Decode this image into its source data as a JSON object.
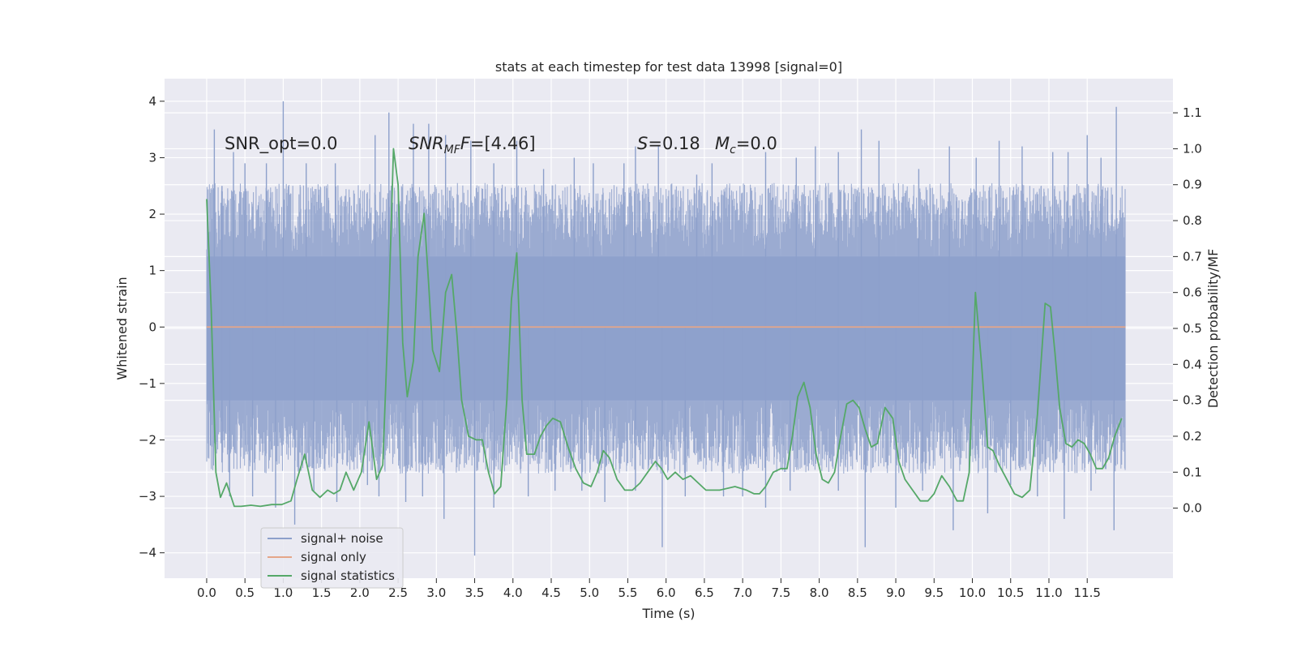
{
  "chart_data": {
    "type": "line",
    "title": "stats at each timestep for test data 13998 [signal=0]",
    "xlabel": "Time (s)",
    "ylabel": "Whitened strain",
    "y2label": "Detection probability/MF",
    "xlim": [
      -0.55,
      12.62
    ],
    "ylim": [
      -4.45,
      4.4
    ],
    "y2lim": [
      -0.195,
      1.195
    ],
    "xticks": [
      0.0,
      0.5,
      1.0,
      1.5,
      2.0,
      2.5,
      3.0,
      3.5,
      4.0,
      4.5,
      5.0,
      5.5,
      6.0,
      6.5,
      7.0,
      7.5,
      8.0,
      8.5,
      9.0,
      9.5,
      10.0,
      10.5,
      11.0,
      11.5
    ],
    "xtick_labels": [
      "0.0",
      "0.5",
      "1.0",
      "1.5",
      "2.0",
      "2.5",
      "3.0",
      "3.5",
      "4.0",
      "4.5",
      "5.0",
      "5.5",
      "6.0",
      "6.5",
      "7.0",
      "7.5",
      "8.0",
      "8.5",
      "9.0",
      "9.5",
      "10.0",
      "10.5",
      "11.0",
      "11.5"
    ],
    "yticks": [
      -4,
      -3,
      -2,
      -1,
      0,
      1,
      2,
      3,
      4
    ],
    "ytick_labels": [
      "−4",
      "−3",
      "−2",
      "−1",
      "0",
      "1",
      "2",
      "3",
      "4"
    ],
    "y2ticks": [
      0.0,
      0.1,
      0.2,
      0.3,
      0.4,
      0.5,
      0.6,
      0.7,
      0.8,
      0.9,
      1.0,
      1.1
    ],
    "y2tick_labels": [
      "0.0",
      "0.1",
      "0.2",
      "0.3",
      "0.4",
      "0.5",
      "0.6",
      "0.7",
      "0.8",
      "0.9",
      "1.0",
      "1.1"
    ],
    "grid": true,
    "legend_position": "lower-left",
    "annotations": {
      "snr_opt": "SNR_opt=0.0",
      "snr_mf_main": "SNR",
      "snr_mf_sub": "MF",
      "snr_mf_rest": "=[4.46]",
      "s_sym": "S",
      "s_val": "=0.18",
      "mc_main": "M",
      "mc_sub": "c",
      "mc_val": "=0.0"
    },
    "series": [
      {
        "name": "signal+ noise",
        "color": "#8da0cb",
        "axis": "left",
        "duration": 12.0,
        "baseline_band": [
          -1.3,
          1.25
        ],
        "spikes": [
          [
            0.1,
            3.5
          ],
          [
            0.2,
            2.5
          ],
          [
            0.35,
            3.1
          ],
          [
            0.5,
            2.9
          ],
          [
            0.78,
            2.9
          ],
          [
            1.0,
            4.0
          ],
          [
            1.3,
            2.9
          ],
          [
            1.68,
            2.9
          ],
          [
            2.2,
            3.4
          ],
          [
            2.38,
            3.8
          ],
          [
            2.7,
            3.6
          ],
          [
            2.9,
            3.6
          ],
          [
            3.12,
            3.4
          ],
          [
            3.45,
            3.3
          ],
          [
            3.75,
            2.9
          ],
          [
            4.05,
            3.3
          ],
          [
            4.4,
            2.8
          ],
          [
            4.8,
            3.0
          ],
          [
            5.05,
            2.9
          ],
          [
            5.45,
            2.9
          ],
          [
            5.6,
            3.2
          ],
          [
            5.9,
            3.2
          ],
          [
            6.4,
            2.7
          ],
          [
            6.6,
            2.9
          ],
          [
            7.3,
            3.1
          ],
          [
            7.7,
            3.0
          ],
          [
            7.95,
            3.2
          ],
          [
            8.25,
            3.1
          ],
          [
            8.55,
            3.5
          ],
          [
            8.78,
            3.3
          ],
          [
            9.3,
            2.8
          ],
          [
            9.7,
            3.2
          ],
          [
            10.05,
            3.0
          ],
          [
            10.35,
            3.3
          ],
          [
            10.65,
            3.2
          ],
          [
            11.05,
            3.1
          ],
          [
            11.25,
            3.1
          ],
          [
            11.5,
            3.4
          ],
          [
            11.68,
            3.0
          ],
          [
            11.88,
            3.9
          ],
          [
            0.05,
            -2.1
          ],
          [
            0.2,
            -2.4
          ],
          [
            0.3,
            -3.0
          ],
          [
            0.6,
            -3.0
          ],
          [
            0.9,
            -3.2
          ],
          [
            1.15,
            -3.5
          ],
          [
            1.4,
            -2.9
          ],
          [
            1.7,
            -3.1
          ],
          [
            2.1,
            -2.8
          ],
          [
            2.25,
            -3.0
          ],
          [
            2.6,
            -3.1
          ],
          [
            2.82,
            -3.0
          ],
          [
            3.1,
            -3.4
          ],
          [
            3.5,
            -4.05
          ],
          [
            3.75,
            -3.2
          ],
          [
            4.2,
            -3.0
          ],
          [
            4.55,
            -2.9
          ],
          [
            4.9,
            -2.9
          ],
          [
            5.2,
            -3.1
          ],
          [
            5.6,
            -2.9
          ],
          [
            5.95,
            -3.9
          ],
          [
            6.25,
            -3.0
          ],
          [
            6.75,
            -3.0
          ],
          [
            7.0,
            -3.0
          ],
          [
            7.3,
            -3.2
          ],
          [
            7.62,
            -2.9
          ],
          [
            8.25,
            -2.9
          ],
          [
            8.6,
            -3.9
          ],
          [
            9.0,
            -3.2
          ],
          [
            9.35,
            -2.9
          ],
          [
            9.75,
            -3.6
          ],
          [
            10.2,
            -3.3
          ],
          [
            10.5,
            -2.8
          ],
          [
            10.85,
            -3.0
          ],
          [
            11.2,
            -3.4
          ],
          [
            11.55,
            -2.9
          ],
          [
            11.85,
            -3.6
          ]
        ]
      },
      {
        "name": "signal only",
        "color": "#e5a689",
        "axis": "left",
        "x": [
          0.0,
          12.0
        ],
        "values": [
          0.0,
          0.0
        ]
      },
      {
        "name": "signal statistics",
        "color": "#55a868",
        "axis": "right",
        "x": [
          0.0,
          0.06,
          0.12,
          0.18,
          0.26,
          0.36,
          0.45,
          0.58,
          0.7,
          0.85,
          0.98,
          1.1,
          1.18,
          1.28,
          1.38,
          1.48,
          1.58,
          1.66,
          1.74,
          1.82,
          1.92,
          2.02,
          2.12,
          2.22,
          2.3,
          2.38,
          2.44,
          2.5,
          2.56,
          2.62,
          2.7,
          2.76,
          2.84,
          2.9,
          2.95,
          3.04,
          3.12,
          3.2,
          3.27,
          3.33,
          3.42,
          3.52,
          3.6,
          3.68,
          3.76,
          3.84,
          3.92,
          3.98,
          4.05,
          4.12,
          4.18,
          4.28,
          4.36,
          4.44,
          4.52,
          4.62,
          4.72,
          4.82,
          4.92,
          5.02,
          5.1,
          5.18,
          5.26,
          5.36,
          5.46,
          5.56,
          5.66,
          5.76,
          5.86,
          5.94,
          6.02,
          6.12,
          6.22,
          6.32,
          6.42,
          6.52,
          6.7,
          6.9,
          7.05,
          7.15,
          7.22,
          7.3,
          7.4,
          7.5,
          7.58,
          7.65,
          7.72,
          7.8,
          7.88,
          7.96,
          8.04,
          8.12,
          8.2,
          8.28,
          8.36,
          8.44,
          8.52,
          8.6,
          8.68,
          8.76,
          8.86,
          8.96,
          9.04,
          9.12,
          9.22,
          9.32,
          9.42,
          9.5,
          9.6,
          9.7,
          9.8,
          9.88,
          9.96,
          10.04,
          10.12,
          10.2,
          10.27,
          10.35,
          10.45,
          10.55,
          10.65,
          10.75,
          10.85,
          10.95,
          11.02,
          11.08,
          11.14,
          11.22,
          11.3,
          11.38,
          11.46,
          11.54,
          11.62,
          11.7,
          11.78,
          11.86,
          11.95
        ],
        "values": [
          0.86,
          0.55,
          0.1,
          0.03,
          0.07,
          0.005,
          0.005,
          0.008,
          0.005,
          0.01,
          0.01,
          0.02,
          0.08,
          0.15,
          0.05,
          0.03,
          0.05,
          0.04,
          0.05,
          0.1,
          0.05,
          0.1,
          0.24,
          0.08,
          0.12,
          0.58,
          1.0,
          0.9,
          0.46,
          0.31,
          0.41,
          0.7,
          0.82,
          0.62,
          0.44,
          0.38,
          0.6,
          0.65,
          0.48,
          0.3,
          0.2,
          0.19,
          0.19,
          0.1,
          0.04,
          0.06,
          0.3,
          0.58,
          0.71,
          0.3,
          0.15,
          0.15,
          0.2,
          0.23,
          0.25,
          0.24,
          0.17,
          0.11,
          0.07,
          0.06,
          0.1,
          0.16,
          0.14,
          0.08,
          0.05,
          0.05,
          0.07,
          0.1,
          0.13,
          0.11,
          0.08,
          0.1,
          0.08,
          0.09,
          0.07,
          0.05,
          0.05,
          0.06,
          0.05,
          0.04,
          0.04,
          0.06,
          0.1,
          0.11,
          0.11,
          0.2,
          0.31,
          0.35,
          0.28,
          0.15,
          0.08,
          0.07,
          0.1,
          0.2,
          0.29,
          0.3,
          0.28,
          0.22,
          0.17,
          0.18,
          0.28,
          0.25,
          0.13,
          0.08,
          0.05,
          0.02,
          0.02,
          0.04,
          0.09,
          0.06,
          0.02,
          0.02,
          0.1,
          0.6,
          0.4,
          0.17,
          0.16,
          0.12,
          0.08,
          0.04,
          0.03,
          0.05,
          0.26,
          0.57,
          0.56,
          0.43,
          0.28,
          0.18,
          0.17,
          0.19,
          0.18,
          0.15,
          0.11,
          0.11,
          0.14,
          0.2,
          0.25
        ]
      }
    ]
  }
}
